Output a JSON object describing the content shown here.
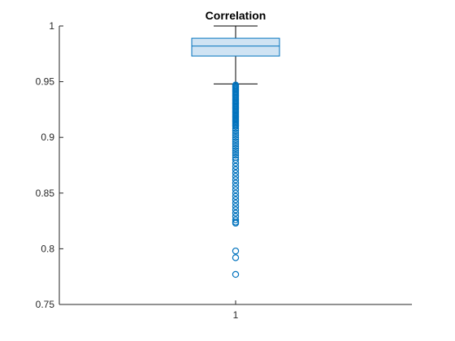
{
  "chart_data": {
    "type": "box",
    "title": "Correlation",
    "xlabel": "",
    "ylabel": "",
    "categories": [
      "1"
    ],
    "ylim": [
      0.75,
      1
    ],
    "yticks": [
      0.75,
      0.8,
      0.85,
      0.9,
      0.95,
      1
    ],
    "ytick_labels": [
      "0.75",
      "0.8",
      "0.85",
      "0.9",
      "0.95",
      "1"
    ],
    "box": {
      "whisker_low": 0.948,
      "q1": 0.973,
      "median": 0.982,
      "q3": 0.989,
      "whisker_high": 1.0
    },
    "outliers": [
      0.947,
      0.946,
      0.945,
      0.944,
      0.943,
      0.942,
      0.941,
      0.94,
      0.939,
      0.938,
      0.937,
      0.936,
      0.935,
      0.934,
      0.933,
      0.932,
      0.931,
      0.93,
      0.929,
      0.928,
      0.927,
      0.926,
      0.925,
      0.924,
      0.923,
      0.922,
      0.921,
      0.92,
      0.919,
      0.918,
      0.917,
      0.916,
      0.915,
      0.914,
      0.913,
      0.912,
      0.911,
      0.91,
      0.908,
      0.906,
      0.904,
      0.902,
      0.9,
      0.898,
      0.896,
      0.894,
      0.892,
      0.89,
      0.888,
      0.886,
      0.884,
      0.882,
      0.88,
      0.877,
      0.874,
      0.871,
      0.868,
      0.865,
      0.862,
      0.859,
      0.856,
      0.853,
      0.85,
      0.847,
      0.844,
      0.841,
      0.838,
      0.835,
      0.832,
      0.829,
      0.826,
      0.824,
      0.823,
      0.798,
      0.792,
      0.777
    ],
    "grid": false,
    "colors": {
      "box_edge": "#0072BD",
      "box_fill": "#CFE3F3",
      "whisker": "#000000",
      "outlier": "#0072BD",
      "axis": "#262626"
    }
  }
}
